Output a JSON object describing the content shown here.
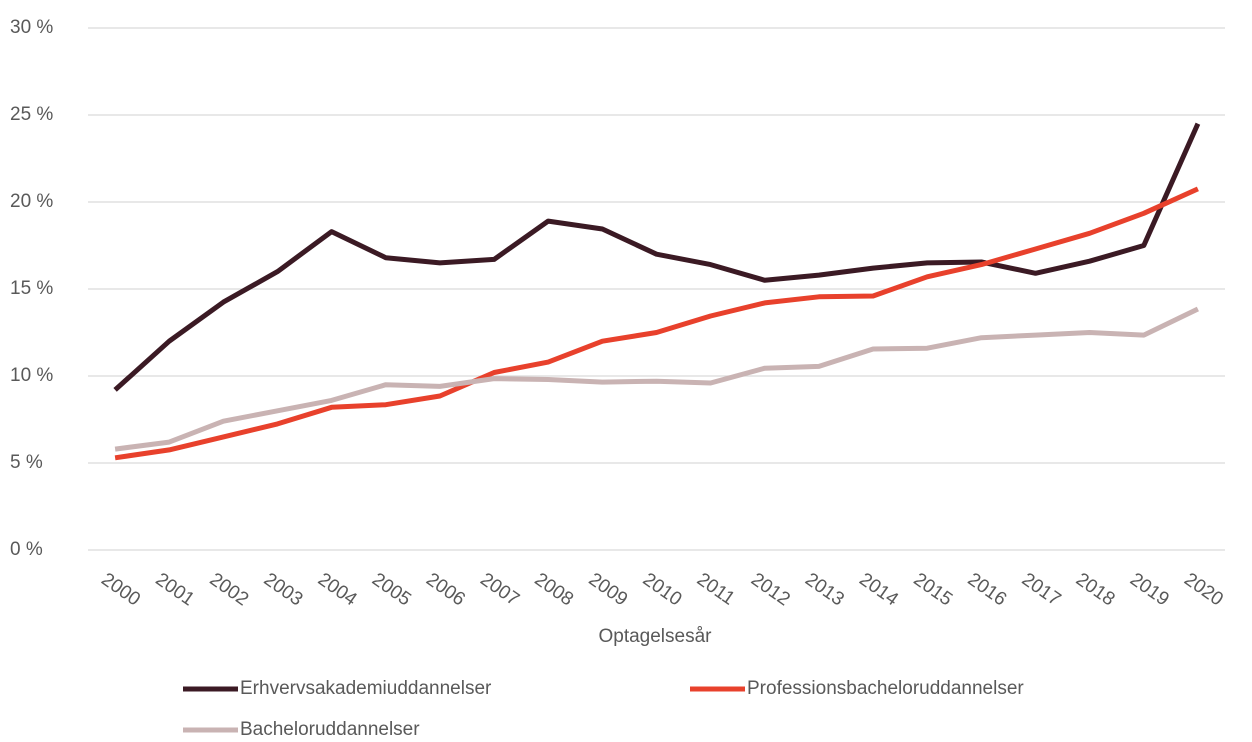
{
  "chart_data": {
    "type": "line",
    "x_label": "Optagelsesår",
    "categories": [
      "2000",
      "2001",
      "2002",
      "2003",
      "2004",
      "2005",
      "2006",
      "2007",
      "2008",
      "2009",
      "2010",
      "2011",
      "2012",
      "2013",
      "2014",
      "2015",
      "2016",
      "2017",
      "2018",
      "2019",
      "2020"
    ],
    "series": [
      {
        "name": "Erhvervsakademiuddannelser",
        "color": "#3b1a24",
        "values": [
          9.2,
          12.0,
          14.25,
          16.0,
          18.3,
          16.8,
          16.5,
          16.7,
          18.9,
          18.45,
          17.0,
          16.4,
          15.5,
          15.8,
          16.2,
          16.5,
          16.55,
          15.9,
          16.6,
          17.5,
          24.5
        ]
      },
      {
        "name": "Professionsbacheloruddannelser",
        "color": "#e8412c",
        "values": [
          5.3,
          5.75,
          6.5,
          7.25,
          8.2,
          8.35,
          8.85,
          10.2,
          10.8,
          12.0,
          12.5,
          13.45,
          14.2,
          14.55,
          14.6,
          15.7,
          16.4,
          17.3,
          18.2,
          19.35,
          20.75
        ]
      },
      {
        "name": "Bacheloruddannelser",
        "color": "#c9b3b3",
        "values": [
          5.8,
          6.2,
          7.4,
          8.0,
          8.6,
          9.5,
          9.4,
          9.85,
          9.8,
          9.65,
          9.7,
          9.6,
          10.45,
          10.55,
          11.55,
          11.6,
          12.2,
          12.35,
          12.5,
          12.35,
          13.85
        ]
      }
    ],
    "ylim": [
      0,
      30
    ],
    "yticks": [
      {
        "value": 0,
        "label": "0 %"
      },
      {
        "value": 5,
        "label": "5 %"
      },
      {
        "value": 10,
        "label": "10 %"
      },
      {
        "value": 15,
        "label": "15 %"
      },
      {
        "value": 20,
        "label": "20 %"
      },
      {
        "value": 25,
        "label": "25 %"
      },
      {
        "value": 30,
        "label": "30 %"
      }
    ],
    "grid": true
  }
}
